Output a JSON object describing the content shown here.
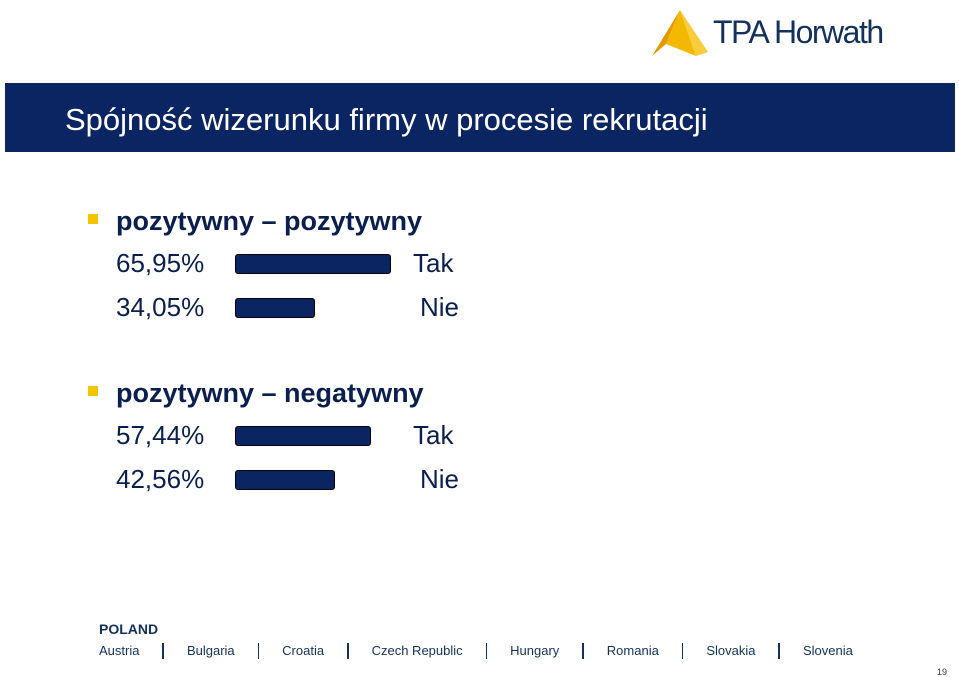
{
  "logo": {
    "text": "TPA Horwath"
  },
  "title": "Spójność wizerunku firmy w procesie rekrutacji",
  "chart_data": [
    {
      "type": "bar",
      "title": "pozytywny – pozytywny",
      "categories": [
        "Tak",
        "Nie"
      ],
      "values": [
        65.95,
        34.05
      ],
      "value_labels": [
        "65,95%",
        "34,05%"
      ],
      "unit": "%",
      "orientation": "horizontal",
      "xlim": [
        0,
        100
      ],
      "grid": false,
      "colors": [
        "#0b2563"
      ]
    },
    {
      "type": "bar",
      "title": "pozytywny – negatywny",
      "categories": [
        "Tak",
        "Nie"
      ],
      "values": [
        57.44,
        42.56
      ],
      "value_labels": [
        "57,44%",
        "42,56%"
      ],
      "unit": "%",
      "orientation": "horizontal",
      "xlim": [
        0,
        100
      ],
      "grid": false,
      "colors": [
        "#0b2563"
      ]
    }
  ],
  "footer": {
    "country": "POLAND",
    "countries": [
      "Austria",
      "Bulgaria",
      "Croatia",
      "Czech Republic",
      "Hungary",
      "Romania",
      "Slovakia",
      "Slovenia"
    ]
  },
  "page_number": "19",
  "colors": {
    "banner": "#0b2563",
    "bar": "#0b2563",
    "bullet": "#f5c400",
    "logo": "#f5b800"
  },
  "icons": {
    "bullet": "square-bullet-icon",
    "logo": "tpa-horwath-logo-icon"
  }
}
